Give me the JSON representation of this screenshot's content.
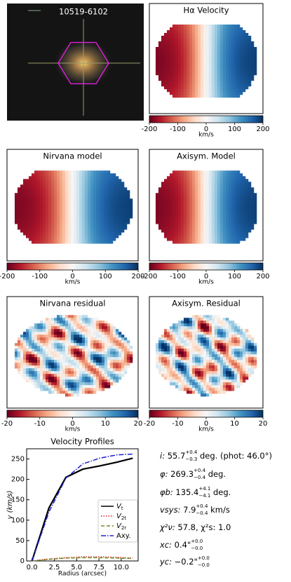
{
  "panels": [
    {
      "title": "10519-6102"
    },
    {
      "title": "Hα Velocity",
      "colorbar": {
        "lim": [
          -200,
          200
        ],
        "ticks": [
          -200,
          -100,
          0,
          100,
          200
        ],
        "label": "km/s"
      }
    },
    {
      "title": "Nirvana model",
      "colorbar": {
        "lim": [
          -200,
          200
        ],
        "ticks": [
          -200,
          -100,
          0,
          100,
          200
        ],
        "label": "km/s"
      }
    },
    {
      "title": "Axisym. Model",
      "colorbar": {
        "lim": [
          -200,
          200
        ],
        "ticks": [
          -200,
          -100,
          0,
          100,
          200
        ],
        "label": "km/s"
      }
    },
    {
      "title": "Nirvana residual",
      "colorbar": {
        "lim": [
          -20,
          20
        ],
        "ticks": [
          -20,
          -10,
          0,
          10,
          20
        ],
        "label": "km/s"
      }
    },
    {
      "title": "Axisym. Residual",
      "colorbar": {
        "lim": [
          -20,
          20
        ],
        "ticks": [
          -20,
          -10,
          0,
          10,
          20
        ],
        "label": "km/s"
      }
    }
  ],
  "chart_data": {
    "type": "line",
    "title": "Velocity Profiles",
    "x_label": "Radius (arcsec)",
    "y_label": "v (km/s)",
    "x": [
      0,
      1.9,
      3.8,
      5.7,
      7.6,
      9.5,
      11.3
    ],
    "series": [
      {
        "name": "Vt",
        "color": "#000000",
        "dash": "",
        "values": [
          0,
          130,
          205,
          225,
          233,
          242,
          252
        ]
      },
      {
        "name": "V2t",
        "color": "#e41a1c",
        "dash": "1.5 2",
        "values": [
          0,
          5,
          8,
          10,
          10,
          9,
          7
        ]
      },
      {
        "name": "V2r",
        "color": "#6b8e23",
        "dash": "5 3",
        "values": [
          0,
          4,
          7,
          8,
          8,
          7,
          6
        ]
      },
      {
        "name": "Axy.",
        "color": "#1f1fd0",
        "dash": "7 2 1.5 2",
        "values": [
          0,
          120,
          203,
          238,
          252,
          260,
          262
        ]
      }
    ],
    "xlim": [
      -0.6,
      11.9
    ],
    "ylim": [
      0,
      275
    ],
    "xticks": [
      {
        "value": 0,
        "label": "0.0"
      },
      {
        "value": 2.5,
        "label": "2.5"
      },
      {
        "value": 5,
        "label": "5.0"
      },
      {
        "value": 7.5,
        "label": "7.5"
      },
      {
        "value": 10,
        "label": "10.0"
      }
    ],
    "yticks": [
      0,
      50,
      100,
      150,
      200,
      250
    ]
  },
  "fit_parameters": [
    {
      "symbol": "i:",
      "value": " 55.7",
      "upper": "+0.4",
      "lower": "−0.3",
      "unit": " deg. (phot: 46.0°)"
    },
    {
      "symbol": "φ:",
      "value": " 269.3",
      "upper": "+0.4",
      "lower": "−0.4",
      "unit": " deg."
    },
    {
      "symbol": "φb:",
      "value": " 135.4",
      "upper": "+4.1",
      "lower": "−4.1",
      "unit": " deg."
    },
    {
      "symbol": "vsys:",
      "value": " 7.9",
      "upper": "+0.4",
      "lower": "−0.4",
      "unit": " km/s"
    },
    {
      "symbol": "χ²ν:",
      "value": " 57.8,   χ²s: 1.0"
    },
    {
      "symbol": "xc:",
      "value": " 0.4\"",
      "upper": "+0.0",
      "lower": "−0.0"
    },
    {
      "symbol": "yc:",
      "value": " −0.2\"",
      "upper": "+0.0",
      "lower": "−0.0"
    }
  ]
}
